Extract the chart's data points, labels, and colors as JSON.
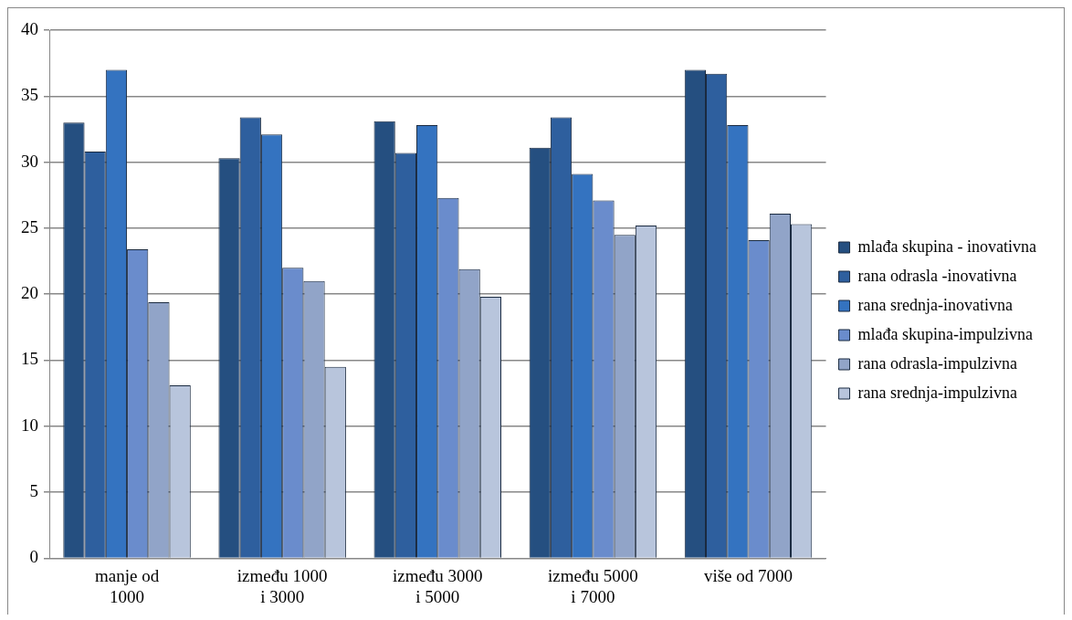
{
  "chart_data": {
    "type": "bar",
    "categories": [
      "manje od 1000",
      "između 1000 i 3000",
      "između 3000 i 5000",
      "između 5000 i 7000",
      "više od 7000"
    ],
    "series": [
      {
        "name": "mlađa skupina - inovativna",
        "color": "#254f80",
        "values": [
          33,
          30.3,
          33.1,
          31.1,
          37
        ]
      },
      {
        "name": "rana odrasla -inovativna",
        "color": "#2e5f9e",
        "values": [
          30.8,
          33.4,
          30.7,
          33.4,
          36.7
        ]
      },
      {
        "name": "rana srednja-inovativna",
        "color": "#3473c0",
        "values": [
          37,
          32.1,
          32.8,
          29.1,
          32.8
        ]
      },
      {
        "name": "mlađa skupina-impulzivna",
        "color": "#6a8ccc",
        "values": [
          23.4,
          22,
          27.3,
          27.1,
          24.1
        ]
      },
      {
        "name": "rana odrasla-impulzivna",
        "color": "#91a4c8",
        "values": [
          19.4,
          21,
          21.9,
          24.5,
          26.1
        ]
      },
      {
        "name": "rana srednja-impulzivna",
        "color": "#b8c5dc",
        "values": [
          13.1,
          14.5,
          19.8,
          25.2,
          25.3
        ]
      }
    ],
    "ylim": [
      0,
      40
    ],
    "yticks": [
      0,
      5,
      10,
      15,
      20,
      25,
      30,
      35,
      40
    ],
    "grid": "y",
    "legend": "right"
  }
}
